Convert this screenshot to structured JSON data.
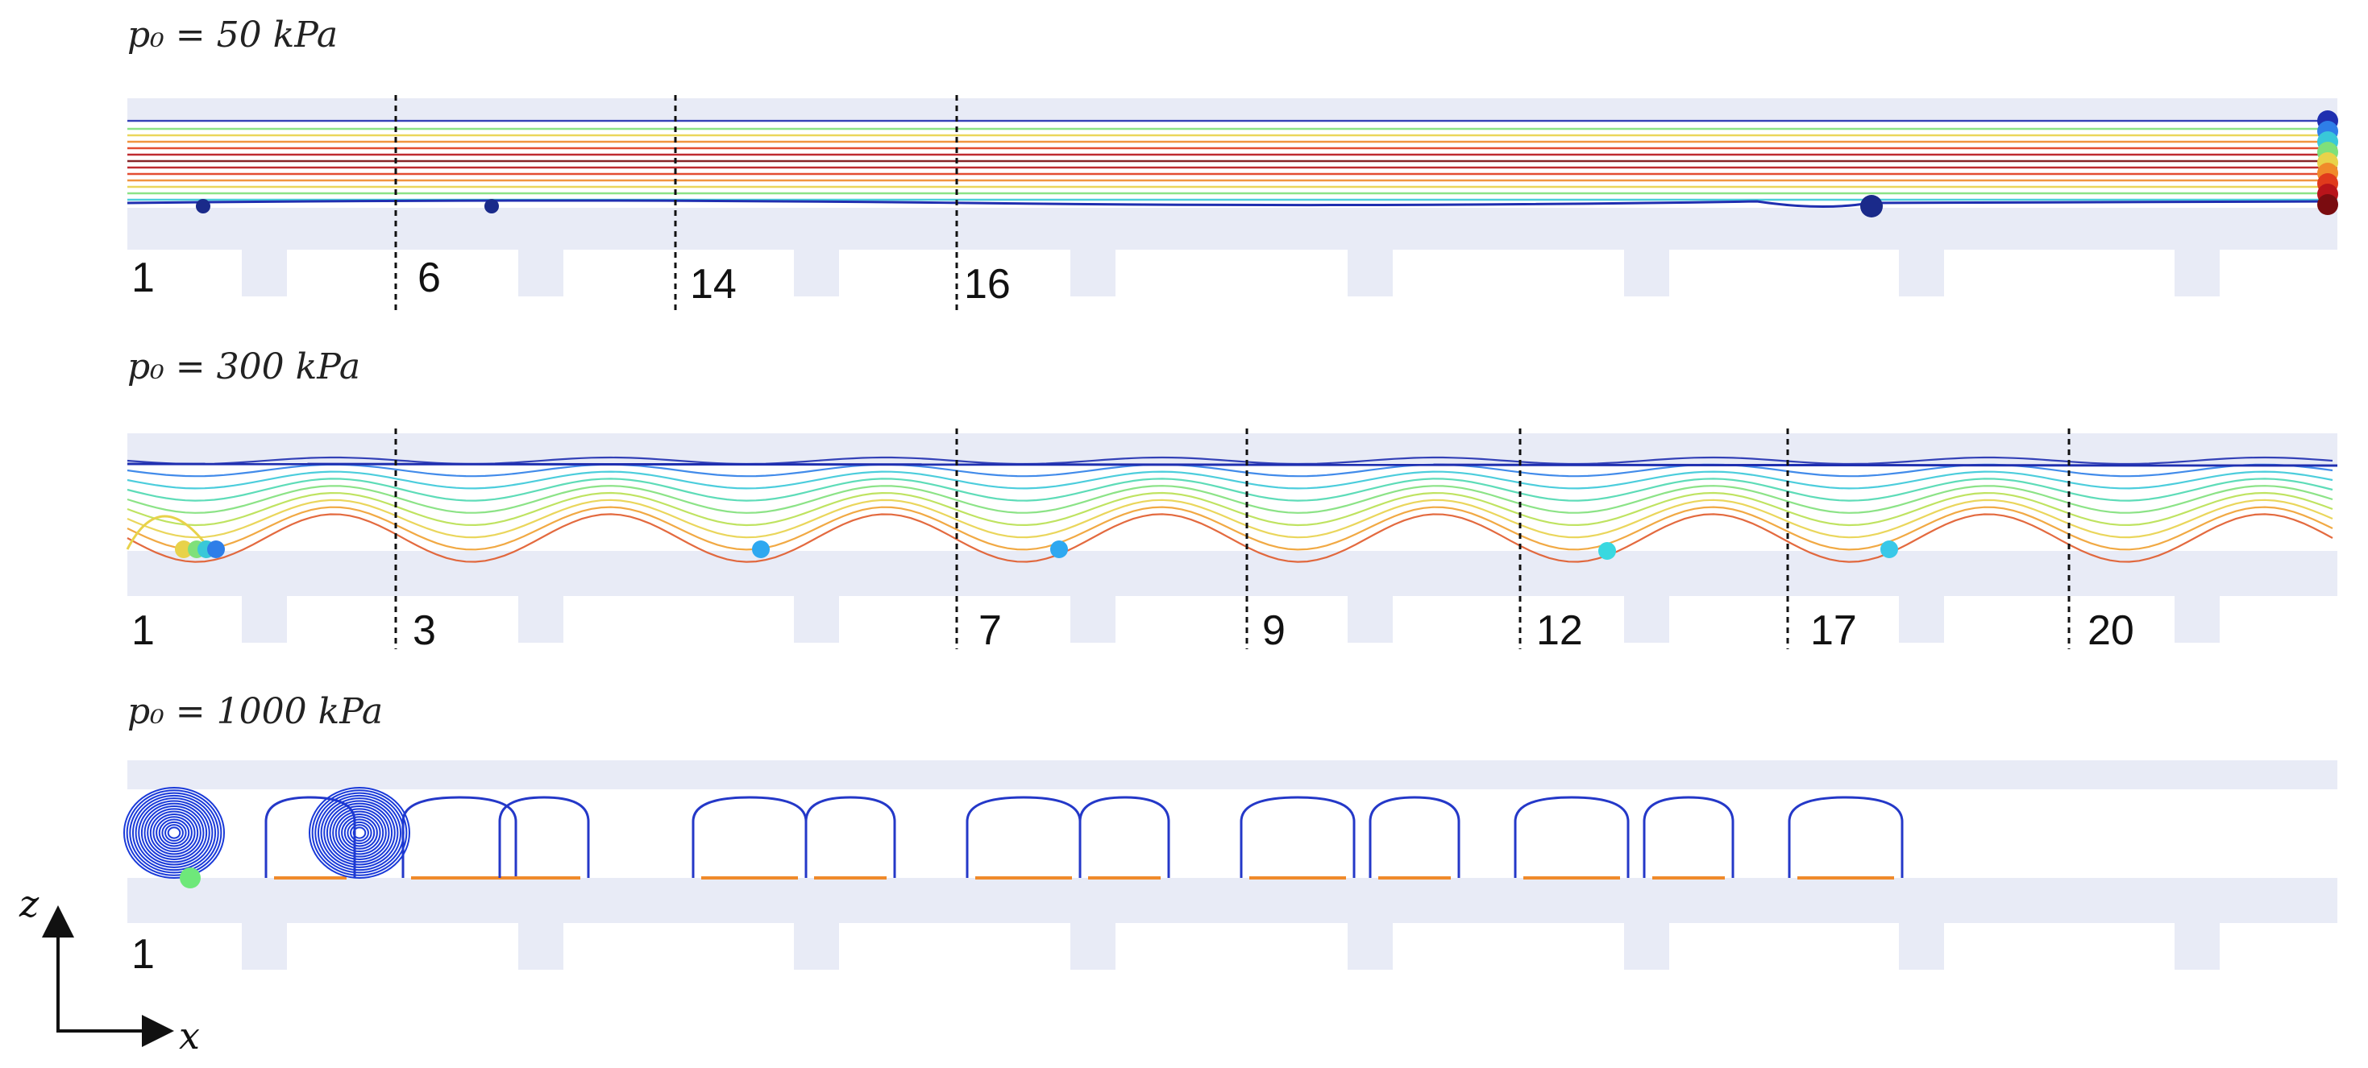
{
  "panels": [
    {
      "label": "p₀ = 50 kPa",
      "markers": [
        "1",
        "6",
        "14",
        "16"
      ],
      "colors": [
        "#1f2fb0",
        "#2e7ee8",
        "#39c8d8",
        "#7fe07a",
        "#e8d24a",
        "#f08a2a",
        "#e03a1c",
        "#b8141a",
        "#7a0c10"
      ]
    },
    {
      "label": "p₀ = 300 kPa",
      "markers": [
        "1",
        "3",
        "7",
        "9",
        "12",
        "17",
        "20"
      ]
    },
    {
      "label": "p₀ = 1000 kPa",
      "markers": [
        "1"
      ]
    }
  ],
  "axes": {
    "vertical": "z",
    "horizontal": "x"
  }
}
